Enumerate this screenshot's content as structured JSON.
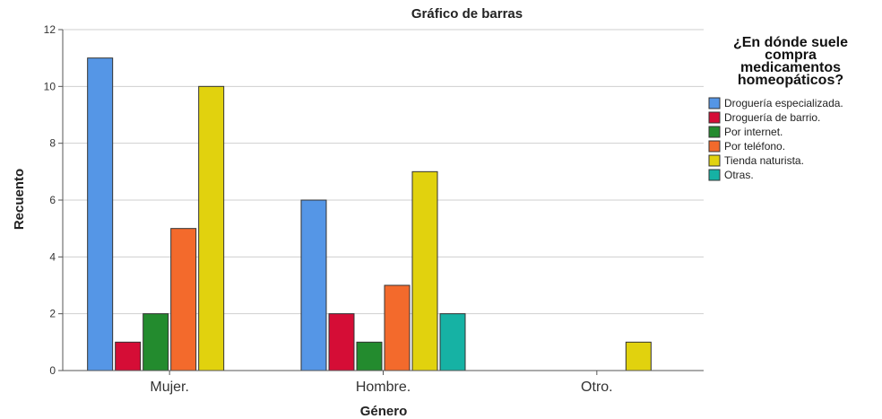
{
  "chart_data": {
    "type": "bar",
    "title": "Gráfico de barras",
    "xlabel": "Género",
    "ylabel": "Recuento",
    "categories": [
      "Mujer.",
      "Hombre.",
      "Otro."
    ],
    "ylim": [
      0,
      12
    ],
    "yticks": [
      0,
      2,
      4,
      6,
      8,
      10,
      12
    ],
    "grid": true,
    "legend_title": [
      "¿En dónde suele",
      "compra",
      "medicamentos",
      "homeopáticos?"
    ],
    "legend_position": "right",
    "series": [
      {
        "name": "Droguería especializada.",
        "color": "#5596e6",
        "values": [
          11,
          6,
          0
        ]
      },
      {
        "name": "Droguería de barrio.",
        "color": "#d50d36",
        "values": [
          1,
          2,
          0
        ]
      },
      {
        "name": "Por internet.",
        "color": "#238b2e",
        "values": [
          2,
          1,
          0
        ]
      },
      {
        "name": "Por teléfono.",
        "color": "#f36a2c",
        "values": [
          5,
          3,
          0
        ]
      },
      {
        "name": "Tienda naturista.",
        "color": "#e1d20e",
        "values": [
          10,
          7,
          1
        ]
      },
      {
        "name": "Otras.",
        "color": "#16b2a4",
        "values": [
          0,
          2,
          0
        ]
      }
    ]
  }
}
